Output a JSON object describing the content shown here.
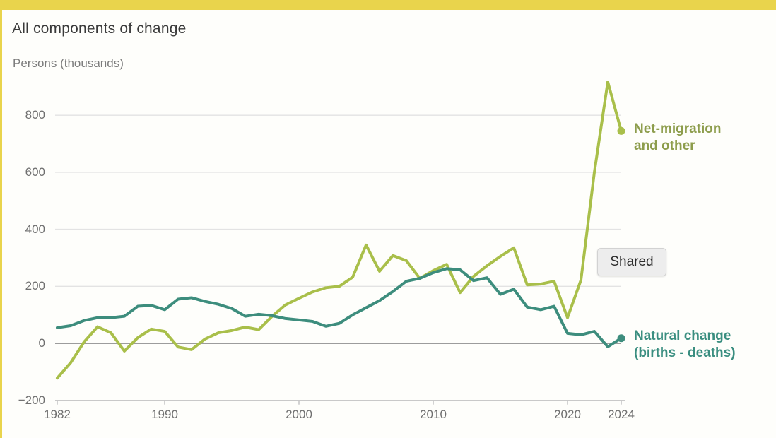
{
  "page": {
    "accent_color": "#e9d44c",
    "background_color": "#fefefb"
  },
  "header": {
    "title": "All components of change",
    "unit_label": "Persons (thousands)"
  },
  "tooltip": {
    "label": "Shared"
  },
  "legend": [
    {
      "series": "net_migration",
      "label_lines": [
        "Net-migration",
        "and other"
      ],
      "text_color": "#8d9d4c"
    },
    {
      "series": "natural_change",
      "label_lines": [
        "Natural change",
        "(births - deaths)"
      ],
      "text_color": "#3a8e80"
    }
  ],
  "chart_data": {
    "type": "line",
    "title": "All components of change",
    "xlabel": "",
    "ylabel": "Persons (thousands)",
    "x": [
      1982,
      1983,
      1984,
      1985,
      1986,
      1987,
      1988,
      1989,
      1990,
      1991,
      1992,
      1993,
      1994,
      1995,
      1996,
      1997,
      1998,
      1999,
      2000,
      2001,
      2002,
      2003,
      2004,
      2005,
      2006,
      2007,
      2008,
      2009,
      2010,
      2011,
      2012,
      2013,
      2014,
      2015,
      2016,
      2017,
      2018,
      2019,
      2020,
      2021,
      2022,
      2023,
      2024
    ],
    "series": [
      {
        "name": "Net-migration and other",
        "color": "#a9bf4a",
        "values": [
          -122,
          -68,
          5,
          58,
          37,
          -27,
          20,
          50,
          42,
          -13,
          -22,
          15,
          37,
          45,
          57,
          48,
          95,
          135,
          158,
          180,
          195,
          200,
          232,
          345,
          253,
          308,
          290,
          228,
          255,
          277,
          178,
          235,
          272,
          305,
          335,
          205,
          208,
          218,
          90,
          222,
          600,
          917,
          745
        ]
      },
      {
        "name": "Natural change (births - deaths)",
        "color": "#3d8d7d",
        "values": [
          55,
          62,
          80,
          90,
          90,
          95,
          130,
          133,
          118,
          155,
          160,
          147,
          137,
          122,
          95,
          102,
          97,
          87,
          82,
          77,
          60,
          70,
          100,
          125,
          150,
          182,
          218,
          228,
          248,
          262,
          258,
          220,
          230,
          172,
          190,
          127,
          118,
          130,
          35,
          30,
          42,
          -12,
          18
        ]
      }
    ],
    "xlim": [
      1982,
      2024
    ],
    "ylim": [
      -200,
      930
    ],
    "x_ticks": [
      1982,
      1990,
      2000,
      2010,
      2020,
      2024
    ],
    "x_tick_labels": [
      "1982",
      "1990",
      "2000",
      "2010",
      "2020",
      "2024"
    ],
    "y_ticks": [
      -200,
      0,
      200,
      400,
      600,
      800
    ],
    "y_tick_labels": [
      "−200",
      "0",
      "200",
      "400",
      "600",
      "800"
    ],
    "grid": "horizontal",
    "zero_line": true,
    "end_dots": true,
    "legend_position": "right of line ends"
  }
}
